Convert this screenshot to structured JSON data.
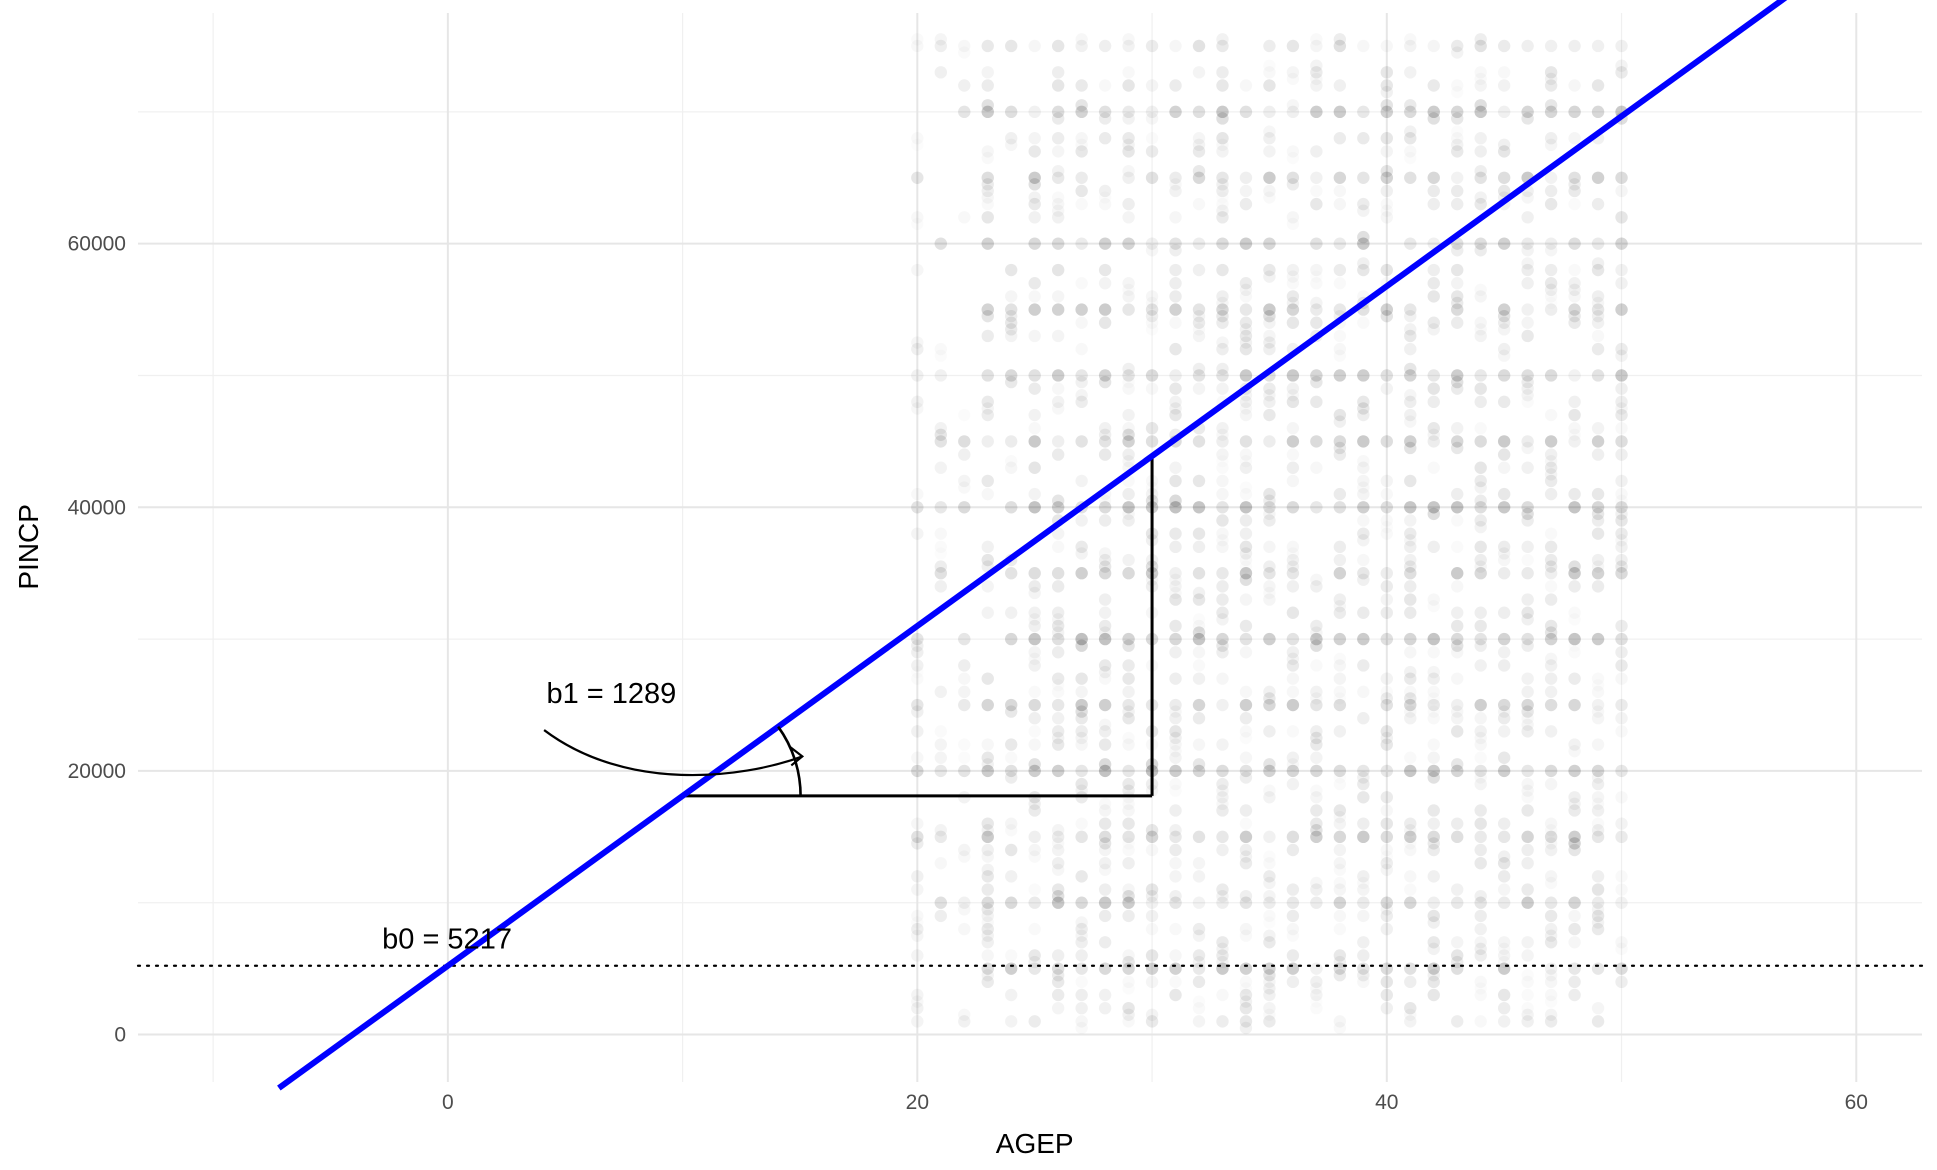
{
  "chart_data": {
    "type": "scatter",
    "title": "",
    "xlabel": "AGEP",
    "ylabel": "PINCP",
    "xlim": [
      -13.2,
      62.8
    ],
    "ylim": [
      -3600,
      77500
    ],
    "grid": true,
    "x_ticks": [
      0,
      20,
      40,
      60
    ],
    "y_ticks": [
      0,
      20000,
      40000,
      60000
    ],
    "point_color": "#000000",
    "point_alpha": 0.03,
    "scatter_x_range": [
      20,
      50
    ],
    "scatter_y_range": [
      1000,
      75000
    ],
    "scatter_x_values": [
      20,
      21,
      22,
      23,
      24,
      25,
      26,
      27,
      28,
      29,
      30,
      31,
      32,
      33,
      34,
      35,
      36,
      37,
      38,
      39,
      40,
      41,
      42,
      43,
      44,
      45,
      46,
      47,
      48,
      49,
      50
    ],
    "scatter_y_levels": [
      1000,
      2000,
      3000,
      4000,
      5000,
      6000,
      7000,
      8000,
      9000,
      10000,
      11000,
      12000,
      13000,
      14000,
      15000,
      16000,
      17000,
      18000,
      19000,
      20000,
      21000,
      22000,
      23000,
      24000,
      25000,
      26000,
      27000,
      28000,
      29000,
      30000,
      31000,
      32000,
      33000,
      34000,
      35000,
      36000,
      37000,
      38000,
      39000,
      40000,
      41000,
      42000,
      43000,
      44000,
      45000,
      46000,
      47000,
      48000,
      49000,
      50000,
      52000,
      53000,
      54000,
      55000,
      56000,
      57000,
      58000,
      60000,
      62000,
      63000,
      64000,
      65000,
      67000,
      68000,
      70000,
      72000,
      73000,
      75000
    ],
    "scatter_heavy_levels": [
      5000,
      10000,
      15000,
      20000,
      25000,
      30000,
      35000,
      40000,
      45000,
      50000,
      55000,
      60000,
      65000,
      70000,
      75000
    ],
    "fit_line": {
      "intercept": 5217,
      "slope": 1289,
      "color": "#0000ff"
    },
    "slope_triangle": {
      "x_start": 10,
      "x_end": 30,
      "color": "#000000"
    },
    "baseline": {
      "y": 5217,
      "style": "dotted",
      "color": "#000000"
    },
    "annotations": {
      "b0_text": "b0 = 5217",
      "b0_anchor": {
        "x": -2.8,
        "y": 7300
      },
      "b1_text": "b1 = 1289",
      "b1_anchor": {
        "x": 4.2,
        "y": 25900
      }
    }
  }
}
